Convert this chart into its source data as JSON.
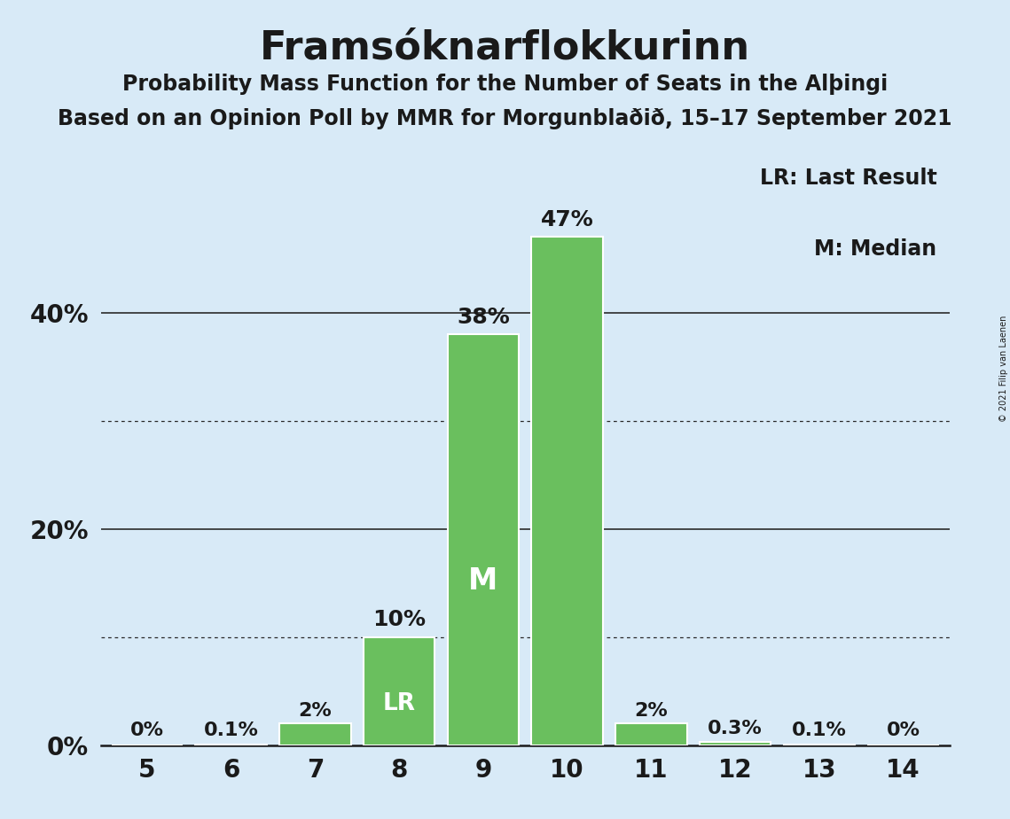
{
  "title": "Framsóknarflokkurinn",
  "subtitle1": "Probability Mass Function for the Number of Seats in the Alþingi",
  "subtitle2": "Based on an Opinion Poll by MMR for Morgunblaðið, 15–17 September 2021",
  "copyright": "© 2021 Filip van Laenen",
  "seats": [
    5,
    6,
    7,
    8,
    9,
    10,
    11,
    12,
    13,
    14
  ],
  "probabilities": [
    0.0,
    0.001,
    0.02,
    0.1,
    0.38,
    0.47,
    0.02,
    0.003,
    0.001,
    0.0
  ],
  "prob_labels": [
    "0%",
    "0.1%",
    "2%",
    "10%",
    "38%",
    "47%",
    "2%",
    "0.3%",
    "0.1%",
    "0%"
  ],
  "bar_color": "#6abf5e",
  "background_color": "#d8eaf7",
  "lr_seat": 8,
  "median_seat": 9,
  "ylim": [
    0,
    0.545
  ],
  "yticks": [
    0.0,
    0.2,
    0.4
  ],
  "ytick_labels": [
    "0%",
    "20%",
    "40%"
  ],
  "dotted_gridlines": [
    0.1,
    0.3
  ],
  "solid_gridlines": [
    0.2,
    0.4
  ],
  "legend_lr": "LR: Last Result",
  "legend_m": "M: Median",
  "title_fontsize": 32,
  "subtitle_fontsize": 17,
  "label_fontsize": 16,
  "tick_fontsize": 20,
  "legend_fontsize": 17,
  "lr_label_fontsize": 19,
  "m_label_fontsize": 24
}
